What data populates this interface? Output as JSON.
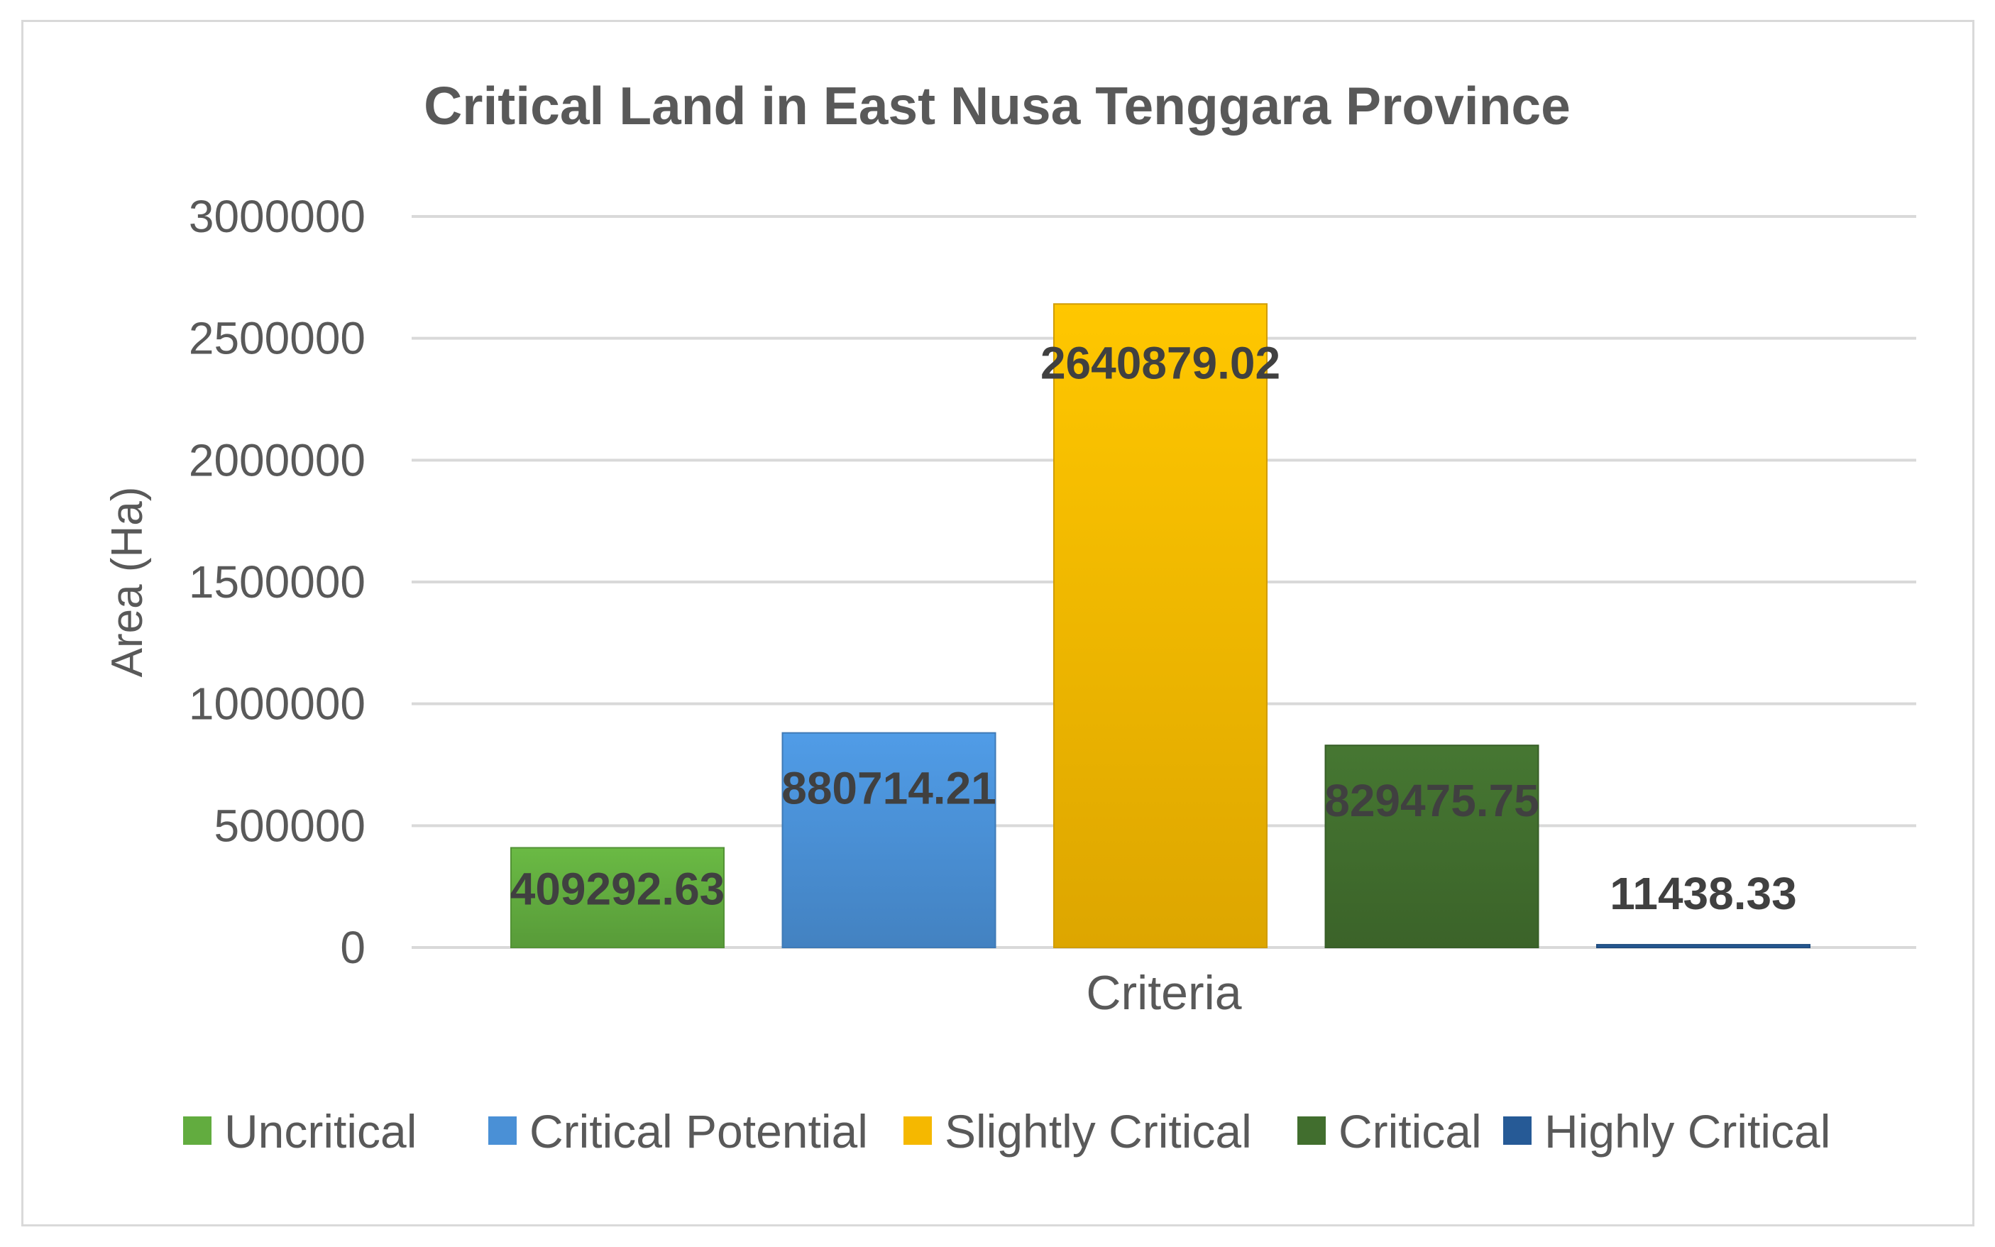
{
  "chart_data": {
    "type": "bar",
    "title": "Critical Land in East Nusa Tenggara Province",
    "xlabel": "Criteria",
    "ylabel": "Area (Ha)",
    "ylim": [
      0,
      3000000
    ],
    "yticks": [
      0,
      500000,
      1000000,
      1500000,
      2000000,
      2500000,
      3000000
    ],
    "ytick_labels": [
      "0",
      "500000",
      "1000000",
      "1500000",
      "2000000",
      "2500000",
      "3000000"
    ],
    "grid": true,
    "legend_position": "bottom",
    "series": [
      {
        "name": "Uncritical",
        "value": 409292.63,
        "label": "409292.63",
        "color": "#62ac3f"
      },
      {
        "name": "Critical Potential",
        "value": 880714.21,
        "label": "880714.21",
        "color": "#4a90d6"
      },
      {
        "name": "Slightly Critical",
        "value": 2640879.02,
        "label": "2640879.02",
        "color": "#f5b800"
      },
      {
        "name": "Critical",
        "value": 829475.75,
        "label": "829475.75",
        "color": "#416e2e"
      },
      {
        "name": "Highly Critical",
        "value": 11438.33,
        "label": "11438.33",
        "color": "#265a96"
      }
    ]
  }
}
